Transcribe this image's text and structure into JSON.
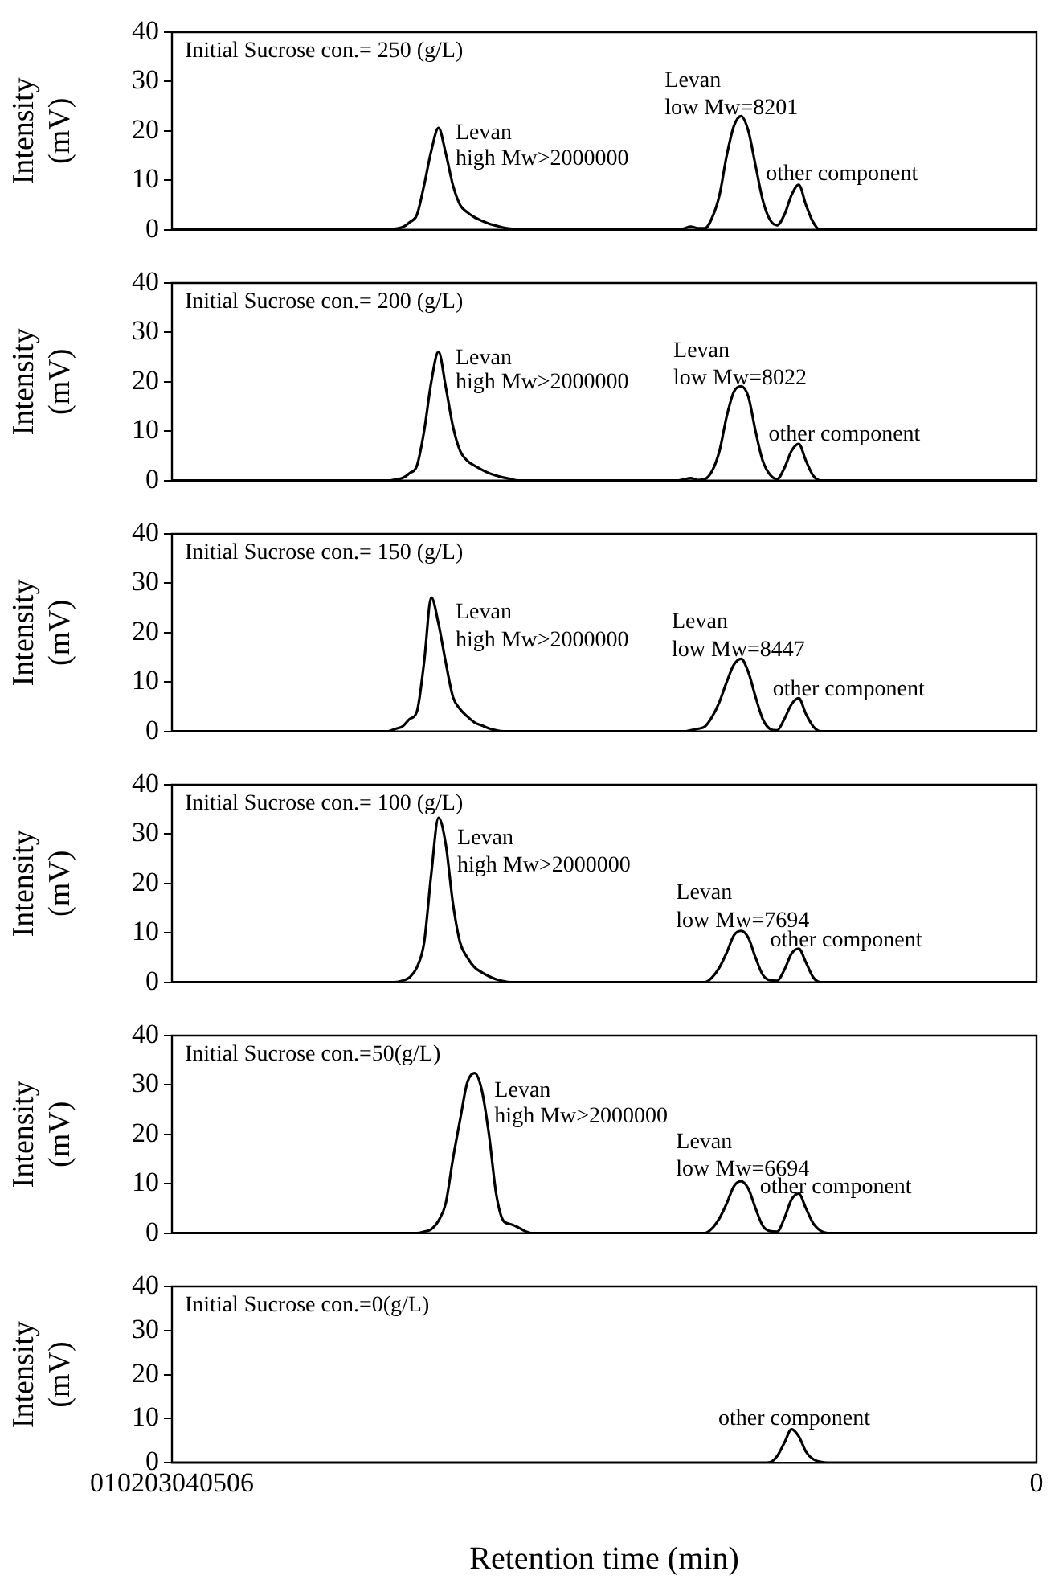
{
  "chart_data": [
    {
      "type": "line",
      "title": "Initial Sucrose con.= 250 (g/L)",
      "ylabel": "Intensity (mV)",
      "ylim": [
        0,
        40
      ],
      "yticks": [
        0,
        10,
        20,
        30,
        40
      ],
      "tick_labels": "y",
      "categories": [
        null,
        null,
        null,
        null,
        null,
        null,
        null,
        null,
        null,
        null,
        null,
        null,
        null,
        null,
        null,
        null,
        null,
        null,
        null,
        null,
        null,
        null,
        null,
        null,
        null,
        null,
        null,
        null,
        null,
        null,
        null,
        null,
        null,
        null,
        null,
        null,
        null,
        null,
        null,
        null,
        null,
        null,
        null,
        null,
        null,
        null,
        null,
        null,
        null,
        null,
        null,
        null,
        null,
        null,
        null,
        null,
        null,
        null,
        null,
        null,
        null,
        null,
        null,
        null,
        null,
        null,
        null,
        null,
        null,
        null,
        null,
        null,
        null,
        null,
        null,
        null,
        null,
        null,
        null,
        null,
        null,
        null,
        null,
        null,
        null,
        null,
        null,
        null,
        null,
        null,
        null,
        null,
        null,
        null,
        null,
        null,
        null,
        null,
        null,
        null,
        null,
        null,
        null,
        null,
        null,
        null,
        null,
        null,
        null,
        null,
        null,
        null,
        null,
        null,
        null,
        null,
        null,
        null,
        null,
        null,
        null
      ],
      "series": [
        {
          "color": "#000000",
          "values": [
            0,
            0,
            0,
            0,
            0,
            0,
            0,
            0,
            0,
            0,
            0,
            0,
            0,
            0,
            0,
            0,
            0,
            0,
            0,
            0,
            0,
            0,
            0,
            0,
            0,
            0,
            0,
            0,
            0,
            0,
            0,
            0.2,
            0.5,
            1.5,
            3,
            9,
            16,
            20.6,
            15.5,
            9,
            5,
            3.5,
            2.5,
            1.8,
            1.2,
            0.8,
            0.4,
            0.2,
            0,
            0,
            0,
            0,
            0,
            0,
            0,
            0,
            0,
            0,
            0,
            0,
            0,
            0,
            0,
            0,
            0,
            0,
            0,
            0,
            0,
            0,
            0,
            0.2,
            0.6,
            0.3,
            0.3,
            2.5,
            7,
            15,
            21,
            23,
            20,
            13,
            6,
            2,
            0.9,
            3,
            7,
            9.1,
            5,
            1.5,
            0,
            0,
            0,
            0,
            0,
            0,
            0,
            0,
            0,
            0,
            0,
            0,
            0,
            0,
            0,
            0,
            0,
            0,
            0,
            0,
            0,
            0,
            0,
            0,
            0,
            0,
            0,
            0,
            0,
            0,
            0
          ]
        }
      ],
      "annotations": [
        "Levan",
        "high Mw>2000000",
        "Levan",
        "low Mw=8201",
        "other component"
      ]
    },
    {
      "type": "line",
      "title": "Initial Sucrose con.= 200 (g/L)",
      "ylabel": "Intensity (mV)",
      "ylim": [
        0,
        40
      ],
      "yticks": [
        0,
        10,
        20,
        30,
        40
      ],
      "tick_labels": "y",
      "categories": [
        null,
        null,
        null,
        null,
        null,
        null,
        null,
        null,
        null,
        null,
        null,
        null,
        null,
        null,
        null,
        null,
        null,
        null,
        null,
        null,
        null,
        null,
        null,
        null,
        null,
        null,
        null,
        null,
        null,
        null,
        null,
        null,
        null,
        null,
        null,
        null,
        null,
        null,
        null,
        null,
        null,
        null,
        null,
        null,
        null,
        null,
        null,
        null,
        null,
        null,
        null,
        null,
        null,
        null,
        null,
        null,
        null,
        null,
        null,
        null,
        null,
        null,
        null,
        null,
        null,
        null,
        null,
        null,
        null,
        null,
        null,
        null,
        null,
        null,
        null,
        null,
        null,
        null,
        null,
        null,
        null,
        null,
        null,
        null,
        null,
        null,
        null,
        null,
        null,
        null,
        null,
        null,
        null,
        null,
        null,
        null,
        null,
        null,
        null,
        null,
        null,
        null,
        null,
        null,
        null,
        null,
        null,
        null,
        null,
        null,
        null,
        null,
        null,
        null,
        null,
        null,
        null,
        null,
        null,
        null,
        null
      ],
      "series": [
        {
          "color": "#000000",
          "values": [
            0,
            0,
            0,
            0,
            0,
            0,
            0,
            0,
            0,
            0,
            0,
            0,
            0,
            0,
            0,
            0,
            0,
            0,
            0,
            0,
            0,
            0,
            0,
            0,
            0,
            0,
            0,
            0,
            0,
            0,
            0,
            0.2,
            0.5,
            1.5,
            3,
            10,
            20,
            26.1,
            19,
            11,
            6,
            4,
            3,
            2.2,
            1.5,
            1,
            0.6,
            0.3,
            0,
            0,
            0,
            0,
            0,
            0,
            0,
            0,
            0,
            0,
            0,
            0,
            0,
            0,
            0,
            0,
            0,
            0,
            0,
            0,
            0,
            0,
            0,
            0.2,
            0.5,
            0.1,
            0.3,
            2,
            6,
            13,
            18,
            19.1,
            17,
            10,
            4,
            1.2,
            0.3,
            2.5,
            6,
            7.4,
            4,
            1,
            0,
            0,
            0,
            0,
            0,
            0,
            0,
            0,
            0,
            0,
            0,
            0,
            0,
            0,
            0,
            0,
            0,
            0,
            0,
            0,
            0,
            0,
            0,
            0,
            0,
            0,
            0,
            0,
            0,
            0,
            0
          ]
        }
      ],
      "annotations": [
        "Levan",
        "high Mw>2000000",
        "Levan",
        "low Mw=8022",
        "other component"
      ]
    },
    {
      "type": "line",
      "title": "Initial Sucrose con.= 150 (g/L)",
      "ylabel": "Intensity (mV)",
      "ylim": [
        0,
        40
      ],
      "yticks": [
        0,
        10,
        20,
        30,
        40
      ],
      "tick_labels": "y",
      "categories": [
        null,
        null,
        null,
        null,
        null,
        null,
        null,
        null,
        null,
        null,
        null,
        null,
        null,
        null,
        null,
        null,
        null,
        null,
        null,
        null,
        null,
        null,
        null,
        null,
        null,
        null,
        null,
        null,
        null,
        null,
        null,
        null,
        null,
        null,
        null,
        null,
        null,
        null,
        null,
        null,
        null,
        null,
        null,
        null,
        null,
        null,
        null,
        null,
        null,
        null,
        null,
        null,
        null,
        null,
        null,
        null,
        null,
        null,
        null,
        null,
        null,
        null,
        null,
        null,
        null,
        null,
        null,
        null,
        null,
        null,
        null,
        null,
        null,
        null,
        null,
        null,
        null,
        null,
        null,
        null,
        null,
        null,
        null,
        null,
        null,
        null,
        null,
        null,
        null,
        null,
        null,
        null,
        null,
        null,
        null,
        null,
        null,
        null,
        null,
        null,
        null,
        null,
        null,
        null,
        null,
        null,
        null,
        null,
        null,
        null,
        null,
        null,
        null,
        null,
        null,
        null,
        null,
        null,
        null,
        null,
        null
      ],
      "series": [
        {
          "color": "#000000",
          "values": [
            0,
            0,
            0,
            0,
            0,
            0,
            0,
            0,
            0,
            0,
            0,
            0,
            0,
            0,
            0,
            0,
            0,
            0,
            0,
            0,
            0,
            0,
            0,
            0,
            0,
            0,
            0,
            0,
            0,
            0,
            0,
            0.5,
            1,
            2.5,
            4,
            14,
            27.1,
            21.8,
            14,
            7,
            4.5,
            3,
            1.8,
            1.2,
            0.6,
            0.2,
            0,
            0,
            0,
            0,
            0,
            0,
            0,
            0,
            0,
            0,
            0,
            0,
            0,
            0,
            0,
            0,
            0,
            0,
            0,
            0,
            0,
            0,
            0,
            0,
            0,
            0,
            0.2,
            0.5,
            1,
            3,
            6,
            10,
            13.5,
            14.7,
            12,
            7,
            2.5,
            0.5,
            0.2,
            2.5,
            5.5,
            6.7,
            3.5,
            1,
            0,
            0,
            0,
            0,
            0,
            0,
            0,
            0,
            0,
            0,
            0,
            0,
            0,
            0,
            0,
            0,
            0,
            0,
            0,
            0,
            0,
            0,
            0,
            0,
            0,
            0,
            0,
            0,
            0,
            0,
            0
          ]
        }
      ],
      "annotations": [
        "Levan",
        "high Mw>2000000",
        "Levan",
        "low Mw=8447",
        "other component"
      ]
    },
    {
      "type": "line",
      "title": "Initial Sucrose con.= 100 (g/L)",
      "ylabel": "Intensity (mV)",
      "ylim": [
        0,
        40
      ],
      "yticks": [
        0,
        10,
        20,
        30,
        40
      ],
      "tick_labels": "y",
      "categories": [
        null,
        null,
        null,
        null,
        null,
        null,
        null,
        null,
        null,
        null,
        null,
        null,
        null,
        null,
        null,
        null,
        null,
        null,
        null,
        null,
        null,
        null,
        null,
        null,
        null,
        null,
        null,
        null,
        null,
        null,
        null,
        null,
        null,
        null,
        null,
        null,
        null,
        null,
        null,
        null,
        null,
        null,
        null,
        null,
        null,
        null,
        null,
        null,
        null,
        null,
        null,
        null,
        null,
        null,
        null,
        null,
        null,
        null,
        null,
        null,
        null,
        null,
        null,
        null,
        null,
        null,
        null,
        null,
        null,
        null,
        null,
        null,
        null,
        null,
        null,
        null,
        null,
        null,
        null,
        null,
        null,
        null,
        null,
        null,
        null,
        null,
        null,
        null,
        null,
        null,
        null,
        null,
        null,
        null,
        null,
        null,
        null,
        null,
        null,
        null,
        null,
        null,
        null,
        null,
        null,
        null,
        null,
        null,
        null,
        null,
        null,
        null,
        null,
        null,
        null,
        null,
        null,
        null,
        null,
        null,
        null
      ],
      "series": [
        {
          "color": "#000000",
          "values": [
            0,
            0,
            0,
            0,
            0,
            0,
            0,
            0,
            0,
            0,
            0,
            0,
            0,
            0,
            0,
            0,
            0,
            0,
            0,
            0,
            0,
            0,
            0,
            0,
            0,
            0,
            0,
            0,
            0,
            0,
            0,
            0,
            0.3,
            1,
            3,
            8,
            22,
            33.3,
            28,
            16,
            8,
            5,
            3,
            2,
            1.2,
            0.6,
            0.2,
            0,
            0,
            0,
            0,
            0,
            0,
            0,
            0,
            0,
            0,
            0,
            0,
            0,
            0,
            0,
            0,
            0,
            0,
            0,
            0,
            0,
            0,
            0,
            0,
            0,
            0,
            0,
            0,
            1,
            3,
            6,
            9.5,
            10.4,
            9,
            5,
            1.5,
            0.4,
            0.3,
            2.5,
            5.8,
            6.8,
            4,
            1,
            0,
            0,
            0,
            0,
            0,
            0,
            0,
            0,
            0,
            0,
            0,
            0,
            0,
            0,
            0,
            0,
            0,
            0,
            0,
            0,
            0,
            0,
            0,
            0,
            0,
            0,
            0,
            0,
            0,
            0,
            0
          ]
        }
      ],
      "annotations": [
        "Levan",
        "high Mw>2000000",
        "Levan",
        "low Mw=7694",
        "other component"
      ]
    },
    {
      "type": "line",
      "title": "Initial Sucrose con.=50(g/L)",
      "ylabel": "Intensity (mV)",
      "ylim": [
        0,
        40
      ],
      "yticks": [
        0,
        10,
        20,
        30,
        40
      ],
      "tick_labels": "y",
      "categories": [
        null,
        null,
        null,
        null,
        null,
        null,
        null,
        null,
        null,
        null,
        null,
        null,
        null,
        null,
        null,
        null,
        null,
        null,
        null,
        null,
        null,
        null,
        null,
        null,
        null,
        null,
        null,
        null,
        null,
        null,
        null,
        null,
        null,
        null,
        null,
        null,
        null,
        null,
        null,
        null,
        null,
        null,
        null,
        null,
        null,
        null,
        null,
        null,
        null,
        null,
        null,
        null,
        null,
        null,
        null,
        null,
        null,
        null,
        null,
        null,
        null,
        null,
        null,
        null,
        null,
        null,
        null,
        null,
        null,
        null,
        null,
        null,
        null,
        null,
        null,
        null,
        null,
        null,
        null,
        null,
        null,
        null,
        null,
        null,
        null,
        null,
        null,
        null,
        null,
        null,
        null,
        null,
        null,
        null,
        null,
        null,
        null,
        null,
        null,
        null,
        null,
        null,
        null,
        null,
        null,
        null,
        null,
        null,
        null,
        null,
        null,
        null,
        null,
        null,
        null,
        null,
        null,
        null,
        null,
        null,
        null
      ],
      "series": [
        {
          "color": "#000000",
          "values": [
            0,
            0,
            0,
            0,
            0,
            0,
            0,
            0,
            0,
            0,
            0,
            0,
            0,
            0,
            0,
            0,
            0,
            0,
            0,
            0,
            0,
            0,
            0,
            0,
            0,
            0,
            0,
            0,
            0,
            0,
            0,
            0,
            0,
            0,
            0,
            0.3,
            0.8,
            2.5,
            6,
            15,
            23,
            30.5,
            32.4,
            29,
            20,
            8,
            2.5,
            1.8,
            1.2,
            0.4,
            0,
            0,
            0,
            0,
            0,
            0,
            0,
            0,
            0,
            0,
            0,
            0,
            0,
            0,
            0,
            0,
            0,
            0,
            0,
            0,
            0,
            0,
            0,
            0,
            0,
            1,
            3,
            6,
            9.5,
            10.5,
            9,
            5,
            1.5,
            0.4,
            0.3,
            3,
            6.8,
            8.0,
            5,
            2,
            0.5,
            0,
            0,
            0,
            0,
            0,
            0,
            0,
            0,
            0,
            0,
            0,
            0,
            0,
            0,
            0,
            0,
            0,
            0,
            0,
            0,
            0,
            0,
            0,
            0,
            0,
            0,
            0,
            0,
            0,
            0
          ]
        }
      ],
      "annotations": [
        "Levan",
        "high Mw>2000000",
        "Levan",
        "low Mw=6694",
        "other component"
      ]
    },
    {
      "type": "line",
      "title": "Initial Sucrose con.=0(g/L)",
      "ylabel": "Intensity (mV)",
      "xlabel": "Retention time (min)",
      "ylim": [
        0,
        40
      ],
      "yticks": [
        0,
        10,
        20,
        30,
        40
      ],
      "categories": [
        "010203040506",
        null,
        null,
        null,
        null,
        null,
        null,
        null,
        null,
        null,
        null,
        null,
        null,
        null,
        null,
        null,
        null,
        null,
        null,
        null,
        null,
        null,
        null,
        null,
        null,
        null,
        null,
        null,
        null,
        null,
        null,
        null,
        null,
        null,
        null,
        null,
        null,
        null,
        null,
        null,
        null,
        null,
        null,
        null,
        null,
        null,
        null,
        null,
        null,
        null,
        null,
        null,
        null,
        null,
        null,
        null,
        null,
        null,
        null,
        null,
        null,
        null,
        null,
        null,
        null,
        null,
        null,
        null,
        null,
        null,
        null,
        null,
        null,
        null,
        null,
        null,
        null,
        null,
        null,
        null,
        null,
        null,
        null,
        null,
        null,
        null,
        null,
        null,
        null,
        null,
        null,
        null,
        null,
        null,
        null,
        null,
        null,
        null,
        null,
        null,
        null,
        null,
        null,
        null,
        null,
        null,
        null,
        null,
        null,
        null,
        null,
        null,
        null,
        null,
        null,
        null,
        null,
        null,
        null,
        null,
        "0"
      ],
      "series": [
        {
          "color": "#000000",
          "values": [
            0,
            0,
            0,
            0,
            0,
            0,
            0,
            0,
            0,
            0,
            0,
            0,
            0,
            0,
            0,
            0,
            0,
            0,
            0,
            0,
            0,
            0,
            0,
            0,
            0,
            0,
            0,
            0,
            0,
            0,
            0,
            0,
            0,
            0,
            0,
            0,
            0,
            0,
            0,
            0,
            0,
            0,
            0,
            0,
            0,
            0,
            0,
            0,
            0,
            0,
            0,
            0,
            0,
            0,
            0,
            0,
            0,
            0,
            0,
            0,
            0,
            0,
            0,
            0,
            0,
            0,
            0,
            0,
            0,
            0,
            0,
            0,
            0,
            0,
            0,
            0,
            0,
            0,
            0,
            0,
            0,
            0,
            0,
            0.1,
            1.5,
            4.5,
            7.6,
            6,
            2.5,
            0.8,
            0.2,
            0,
            0,
            0,
            0,
            0,
            0,
            0,
            0,
            0,
            0,
            0,
            0,
            0,
            0,
            0,
            0,
            0,
            0,
            0,
            0,
            0,
            0,
            0,
            0,
            0,
            0,
            0,
            0,
            0,
            0
          ]
        }
      ],
      "annotations": [
        "other component"
      ]
    }
  ]
}
